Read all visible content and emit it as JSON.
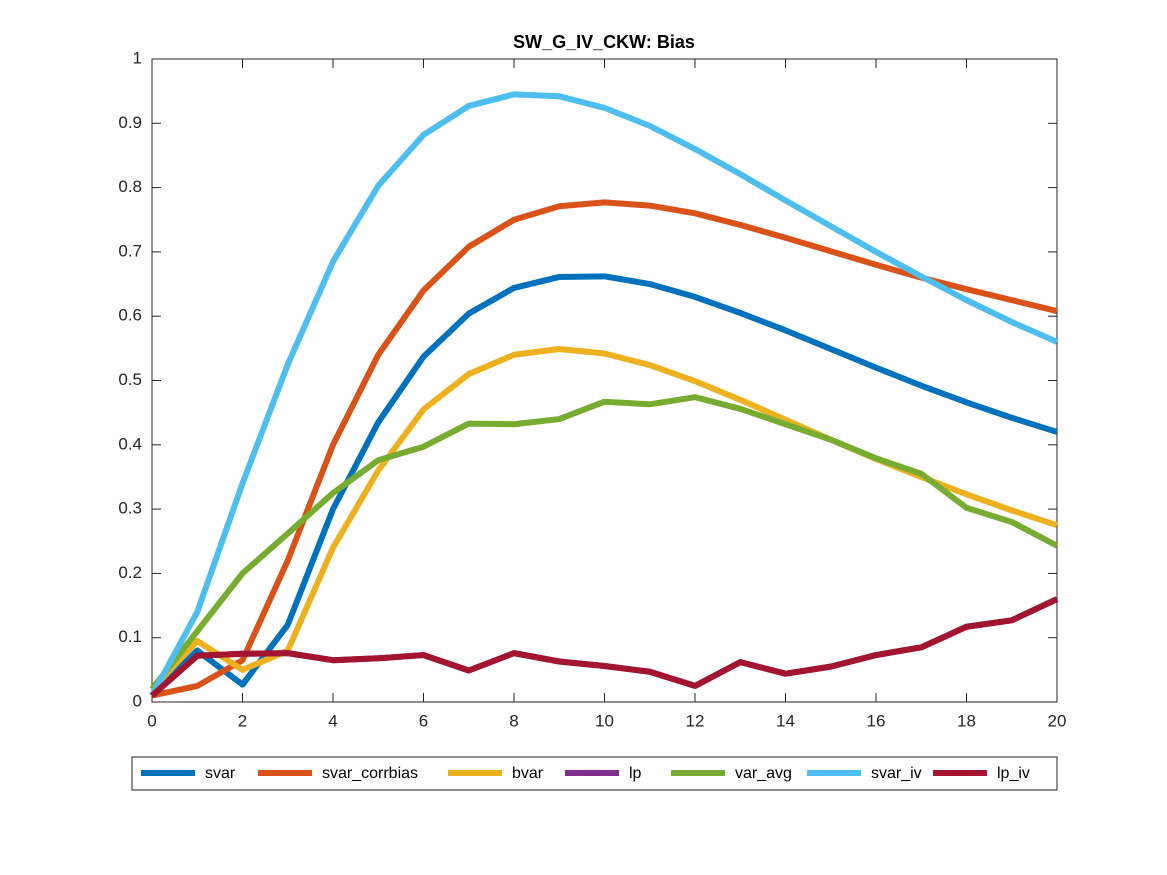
{
  "chart_data": {
    "type": "line",
    "title": "SW_G_IV_CKW: Bias",
    "x": [
      0,
      1,
      2,
      3,
      4,
      5,
      6,
      7,
      8,
      9,
      10,
      11,
      12,
      13,
      14,
      15,
      16,
      17,
      18,
      19,
      20
    ],
    "xlim": [
      0,
      20
    ],
    "xticks": [
      0,
      2,
      4,
      6,
      8,
      10,
      12,
      14,
      16,
      18,
      20
    ],
    "ylim": [
      0,
      1
    ],
    "yticks": [
      0,
      0.1,
      0.2,
      0.3,
      0.4,
      0.5,
      0.6,
      0.7,
      0.8,
      0.9,
      1
    ],
    "legend": "bottom",
    "series": [
      {
        "name": "svar",
        "color": "#0072BD",
        "values": [
          0.01,
          0.08,
          0.027,
          0.12,
          0.3,
          0.435,
          0.537,
          0.604,
          0.644,
          0.661,
          0.662,
          0.65,
          0.63,
          0.605,
          0.578,
          0.549,
          0.52,
          0.492,
          0.466,
          0.442,
          0.42
        ]
      },
      {
        "name": "svar_corrbias",
        "color": "#D95319",
        "values": [
          0.01,
          0.025,
          0.065,
          0.22,
          0.4,
          0.54,
          0.64,
          0.708,
          0.75,
          0.771,
          0.777,
          0.772,
          0.76,
          0.742,
          0.722,
          0.701,
          0.68,
          0.66,
          0.642,
          0.625,
          0.608
        ]
      },
      {
        "name": "bvar",
        "color": "#EDB120",
        "values": [
          0.02,
          0.095,
          0.05,
          0.08,
          0.24,
          0.36,
          0.455,
          0.51,
          0.54,
          0.549,
          0.542,
          0.524,
          0.499,
          0.47,
          0.439,
          0.408,
          0.378,
          0.35,
          0.323,
          0.298,
          0.275
        ]
      },
      {
        "name": "lp",
        "color": "#7E2F8E",
        "values": [
          0.01,
          0.072,
          0.075,
          0.076,
          0.065,
          0.068,
          0.073,
          0.049,
          0.076,
          0.063,
          0.056,
          0.047,
          0.025,
          0.062,
          0.044,
          0.055,
          0.073,
          0.085,
          0.117,
          0.127,
          0.16
        ]
      },
      {
        "name": "var_avg",
        "color": "#77AC30",
        "values": [
          0.02,
          0.11,
          0.2,
          0.262,
          0.325,
          0.376,
          0.397,
          0.433,
          0.432,
          0.44,
          0.467,
          0.463,
          0.474,
          0.456,
          0.432,
          0.408,
          0.379,
          0.355,
          0.302,
          0.28,
          0.243
        ]
      },
      {
        "name": "svar_iv",
        "color": "#4DBEEE",
        "values": [
          0.01,
          0.14,
          0.34,
          0.525,
          0.685,
          0.803,
          0.882,
          0.927,
          0.945,
          0.942,
          0.924,
          0.896,
          0.86,
          0.821,
          0.78,
          0.74,
          0.7,
          0.662,
          0.625,
          0.591,
          0.56
        ]
      },
      {
        "name": "lp_iv",
        "color": "#A2142F",
        "values": [
          0.01,
          0.072,
          0.075,
          0.076,
          0.065,
          0.068,
          0.073,
          0.049,
          0.076,
          0.063,
          0.056,
          0.047,
          0.025,
          0.062,
          0.044,
          0.055,
          0.073,
          0.085,
          0.117,
          0.127,
          0.16
        ]
      }
    ]
  }
}
